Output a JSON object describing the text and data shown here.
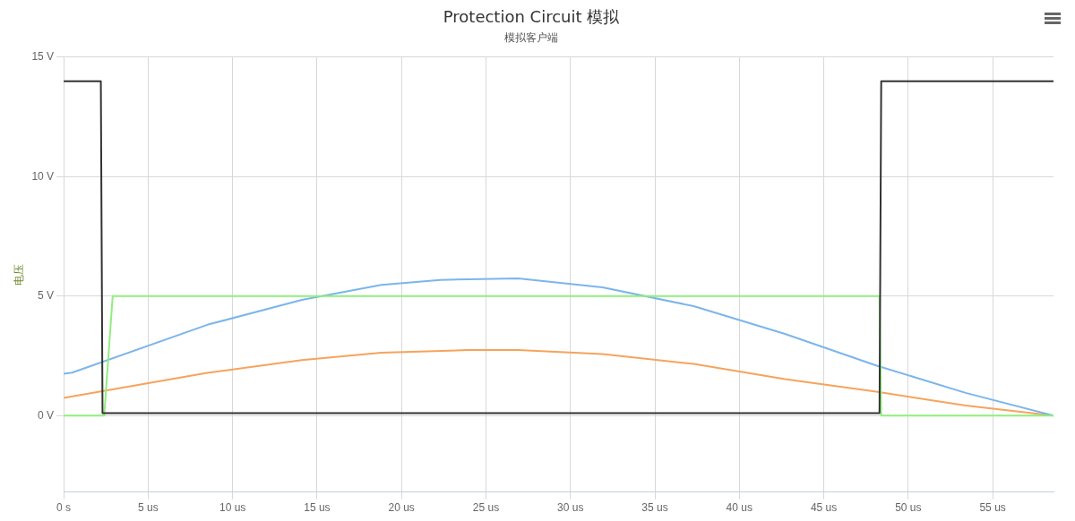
{
  "chart_data": {
    "type": "line",
    "title": "Protection Circuit 模拟",
    "subtitle": "模拟客户端",
    "ylabel": "电压",
    "xlim": [
      0,
      58.6
    ],
    "ylim": [
      -3.2,
      15
    ],
    "xticks": [
      {
        "value": 0,
        "label": "0 s"
      },
      {
        "value": 5,
        "label": "5 us"
      },
      {
        "value": 10,
        "label": "10 us"
      },
      {
        "value": 15,
        "label": "15 us"
      },
      {
        "value": 20,
        "label": "20 us"
      },
      {
        "value": 25,
        "label": "25 us"
      },
      {
        "value": 30,
        "label": "30 us"
      },
      {
        "value": 35,
        "label": "35 us"
      },
      {
        "value": 40,
        "label": "40 us"
      },
      {
        "value": 45,
        "label": "45 us"
      },
      {
        "value": 50,
        "label": "50 us"
      },
      {
        "value": 55,
        "label": "55 us"
      }
    ],
    "yticks": [
      {
        "value": 0,
        "label": "0 V"
      },
      {
        "value": 5,
        "label": "5 V"
      },
      {
        "value": 10,
        "label": "10 V"
      },
      {
        "value": 15,
        "label": "15 V"
      }
    ],
    "grid": true,
    "legend": false,
    "marker": "none",
    "line_style": "solid",
    "series": [
      {
        "color": "#333333",
        "x": [
          0,
          2.2,
          2.3,
          48.3,
          48.4,
          58.6
        ],
        "values": [
          14.0,
          14.0,
          0.1,
          0.1,
          14.0,
          14.0
        ]
      },
      {
        "color": "#90ee7e",
        "x": [
          0,
          2.4,
          2.9,
          48.3,
          48.4,
          58.6
        ],
        "values": [
          0,
          0,
          5,
          5,
          0,
          0
        ]
      },
      {
        "color": "#7cb5ec",
        "x": [
          0,
          0.5,
          8.5,
          14.1,
          18.8,
          22.3,
          26.9,
          31.9,
          37.3,
          42.7,
          48.1,
          53.4,
          58.6
        ],
        "values": [
          1.75,
          1.8,
          3.8,
          4.84,
          5.47,
          5.68,
          5.74,
          5.37,
          4.58,
          3.42,
          2.1,
          0.95,
          0
        ]
      },
      {
        "color": "#f7a35c",
        "x": [
          0,
          8.5,
          14.1,
          18.8,
          23.9,
          26.9,
          31.9,
          37.3,
          42.7,
          48.1,
          53.4,
          58.6
        ],
        "values": [
          0.74,
          1.79,
          2.32,
          2.63,
          2.74,
          2.74,
          2.58,
          2.16,
          1.53,
          1.0,
          0.42,
          0
        ]
      }
    ]
  }
}
